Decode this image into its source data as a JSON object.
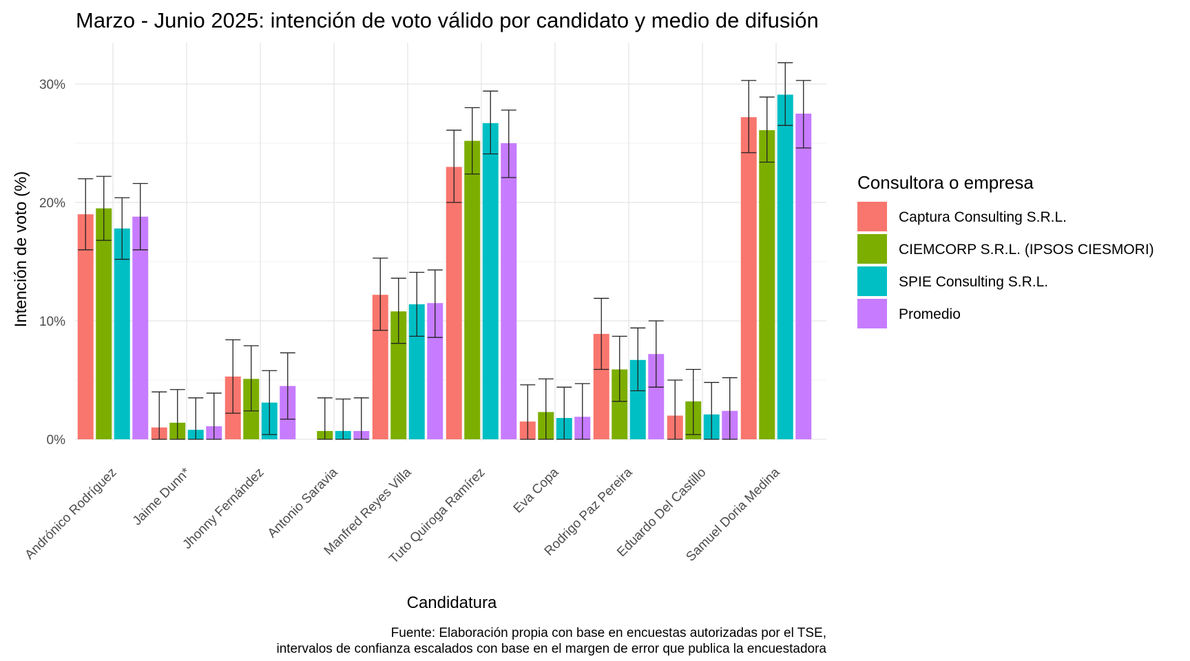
{
  "chart_data": {
    "type": "bar",
    "title": "Marzo - Junio 2025: intención de voto válido por candidato y medio de difusión",
    "xlabel": "Candidatura",
    "ylabel": "Intención de voto (%)",
    "ylim": [
      0,
      33
    ],
    "yticks": [
      {
        "value": 0,
        "label": "0%"
      },
      {
        "value": 10,
        "label": "10%"
      },
      {
        "value": 20,
        "label": "20%"
      },
      {
        "value": 30,
        "label": "30%"
      }
    ],
    "grid": true,
    "legend_title": "Consultora o empresa",
    "legend_position": "right",
    "categories": [
      "Andrónico Rodríguez",
      "Jaime Dunn*",
      "Jhonny Fernández",
      "Antonio Saravia",
      "Manfred Reyes Villa",
      "Tuto Quiroga Ramírez",
      "Eva Copa",
      "Rodrigo Paz Pereira",
      "Eduardo Del Castillo",
      "Samuel Doria Medina"
    ],
    "series": [
      {
        "name": "Captura Consulting S.R.L.",
        "color": "#F8766D",
        "values": [
          19.0,
          1.0,
          5.3,
          null,
          12.2,
          23.0,
          1.5,
          8.9,
          2.0,
          27.2
        ],
        "ci_low": [
          16.0,
          0.0,
          2.2,
          null,
          9.2,
          20.0,
          0.0,
          5.9,
          0.0,
          24.2
        ],
        "ci_high": [
          22.0,
          4.0,
          8.4,
          null,
          15.3,
          26.1,
          4.6,
          11.9,
          5.0,
          30.3
        ]
      },
      {
        "name": "CIEMCORP S.R.L. (IPSOS CIESMORI)",
        "color": "#7CAE00",
        "values": [
          19.5,
          1.4,
          5.1,
          0.7,
          10.8,
          25.2,
          2.3,
          5.9,
          3.2,
          26.1
        ],
        "ci_low": [
          16.8,
          0.0,
          2.4,
          0.0,
          8.1,
          22.4,
          0.0,
          3.2,
          0.4,
          23.4
        ],
        "ci_high": [
          22.2,
          4.2,
          7.9,
          3.5,
          13.6,
          28.0,
          5.1,
          8.7,
          5.9,
          28.9
        ]
      },
      {
        "name": "SPIE Consulting S.R.L.",
        "color": "#00BFC4",
        "values": [
          17.8,
          0.8,
          3.1,
          0.7,
          11.4,
          26.7,
          1.8,
          6.7,
          2.1,
          29.1
        ],
        "ci_low": [
          15.2,
          0.0,
          0.4,
          0.0,
          8.7,
          24.1,
          0.0,
          4.1,
          0.0,
          26.5
        ],
        "ci_high": [
          20.4,
          3.5,
          5.8,
          3.4,
          14.1,
          29.4,
          4.4,
          9.4,
          4.8,
          31.8
        ]
      },
      {
        "name": "Promedio",
        "color": "#C77CFF",
        "values": [
          18.8,
          1.1,
          4.5,
          0.7,
          11.5,
          25.0,
          1.9,
          7.2,
          2.4,
          27.5
        ],
        "ci_low": [
          16.0,
          0.0,
          1.7,
          0.0,
          8.6,
          22.1,
          0.0,
          4.4,
          0.0,
          24.6
        ],
        "ci_high": [
          21.6,
          3.9,
          7.3,
          3.5,
          14.3,
          27.8,
          4.7,
          10.0,
          5.2,
          30.3
        ]
      }
    ],
    "caption": [
      "Fuente: Elaboración propia con base en encuestas autorizadas por el TSE,",
      "intervalos de confianza escalados con base en el margen de error que publica la encuestadora"
    ]
  }
}
